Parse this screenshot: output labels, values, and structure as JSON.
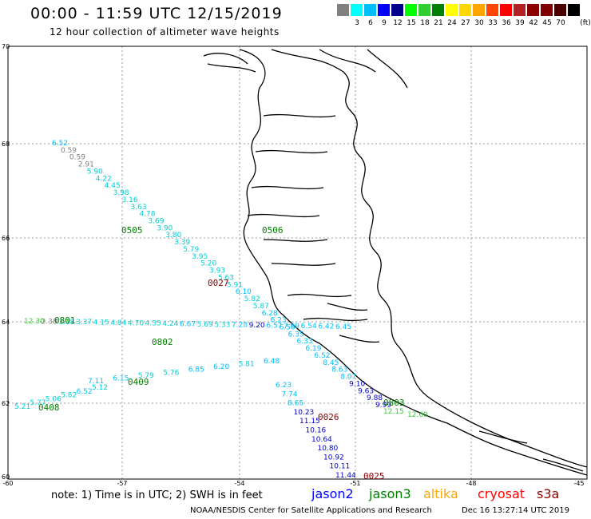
{
  "title": "00:00 - 11:59 UTC 12/15/2019",
  "subtitle": "12 hour collection of altimeter wave heights",
  "legend": {
    "unit": "(ft)",
    "swatches": [
      {
        "color": "#808080",
        "label": ""
      },
      {
        "color": "#00ffff",
        "label": "3"
      },
      {
        "color": "#00bfff",
        "label": "6"
      },
      {
        "color": "#0000ff",
        "label": "9"
      },
      {
        "color": "#00008b",
        "label": "12"
      },
      {
        "color": "#00ff00",
        "label": "15"
      },
      {
        "color": "#32cd32",
        "label": "18"
      },
      {
        "color": "#008000",
        "label": "21"
      },
      {
        "color": "#ffff00",
        "label": "24"
      },
      {
        "color": "#ffd700",
        "label": "27"
      },
      {
        "color": "#ffa500",
        "label": "30"
      },
      {
        "color": "#ff4500",
        "label": "33"
      },
      {
        "color": "#ff0000",
        "label": "36"
      },
      {
        "color": "#b22222",
        "label": "39"
      },
      {
        "color": "#8b0000",
        "label": "42"
      },
      {
        "color": "#800000",
        "label": "45"
      },
      {
        "color": "#4b0000",
        "label": "70"
      },
      {
        "color": "#000000",
        "label": ""
      }
    ]
  },
  "axes": {
    "latitudes": [
      "70",
      "68",
      "66",
      "64",
      "62",
      "60"
    ],
    "longitudes": [
      "-60",
      "-57",
      "-54",
      "-51",
      "-48",
      "-45"
    ]
  },
  "tracks": [
    {
      "id": "0505",
      "color": "#008000",
      "times_color": "#008000",
      "values": [
        "6.52",
        "0.59",
        "0.59",
        "2.91",
        "5.90",
        "4.22",
        "4.45",
        "3.98",
        "3.16",
        "3.63",
        "4.78",
        "3.69",
        "3.90",
        "3.80",
        "3.39",
        "5.79",
        "3.95",
        "5.20",
        "3.93",
        "5.63",
        "5.91",
        "6.10",
        "5.82",
        "5.87",
        "6.28",
        "6.23",
        "6.56",
        "6.35",
        "6.33",
        "6.19",
        "6.52",
        "8.45",
        "8.63",
        "8.07",
        "9.10",
        "9.63",
        "9.88",
        "9.99"
      ]
    },
    {
      "id": "0506",
      "color": "#008000",
      "values": []
    },
    {
      "id": "0027",
      "color": "#8b0000",
      "values": []
    },
    {
      "id": "0801",
      "color": "#008000",
      "values": [
        "12.30",
        "2.38",
        "3.38",
        "3.37",
        "4.15",
        "4.84",
        "4.70",
        "4.35",
        "4.24",
        "6.67",
        "5.69",
        "5.33",
        "7.28",
        "9.20",
        "6.57",
        "7.69",
        "6.54",
        "6.42",
        "6.45"
      ]
    },
    {
      "id": "0802",
      "color": "#008000",
      "values": []
    },
    {
      "id": "0409",
      "color": "#008000",
      "values": [
        "7.11",
        "6.15",
        "5.79",
        "5.76",
        "6.85",
        "6.20",
        "5.81",
        "6.48"
      ]
    },
    {
      "id": "0408",
      "color": "#008000",
      "values": [
        "5.21",
        "5.77",
        "5.06",
        "5.82",
        "6.52",
        "5.12"
      ]
    },
    {
      "id": "0026",
      "color": "#8b0000",
      "values": [
        "6.23",
        "7.74",
        "8.65",
        "10.23",
        "11.15",
        "10.16",
        "10.64",
        "10.80",
        "10.92",
        "10.11",
        "11.44"
      ]
    },
    {
      "id": "0025",
      "color": "#8b0000",
      "values": []
    },
    {
      "id": "0803",
      "color": "#008000",
      "values": [
        "12.15",
        "12.60"
      ]
    }
  ],
  "note": "note: 1) Time is in UTC; 2) SWH is in feet",
  "satellites": [
    {
      "name": "jason2",
      "color": "#0000ff"
    },
    {
      "name": "jason3",
      "color": "#008000"
    },
    {
      "name": "altika",
      "color": "#ffa500"
    },
    {
      "name": "cryosat",
      "color": "#ff0000"
    },
    {
      "name": "s3a",
      "color": "#8b0000"
    }
  ],
  "credit": "NOAA/NESDIS Center for Satellite Applications and Research",
  "timestamp": "Dec 16 13:27:14 UTC 2019"
}
